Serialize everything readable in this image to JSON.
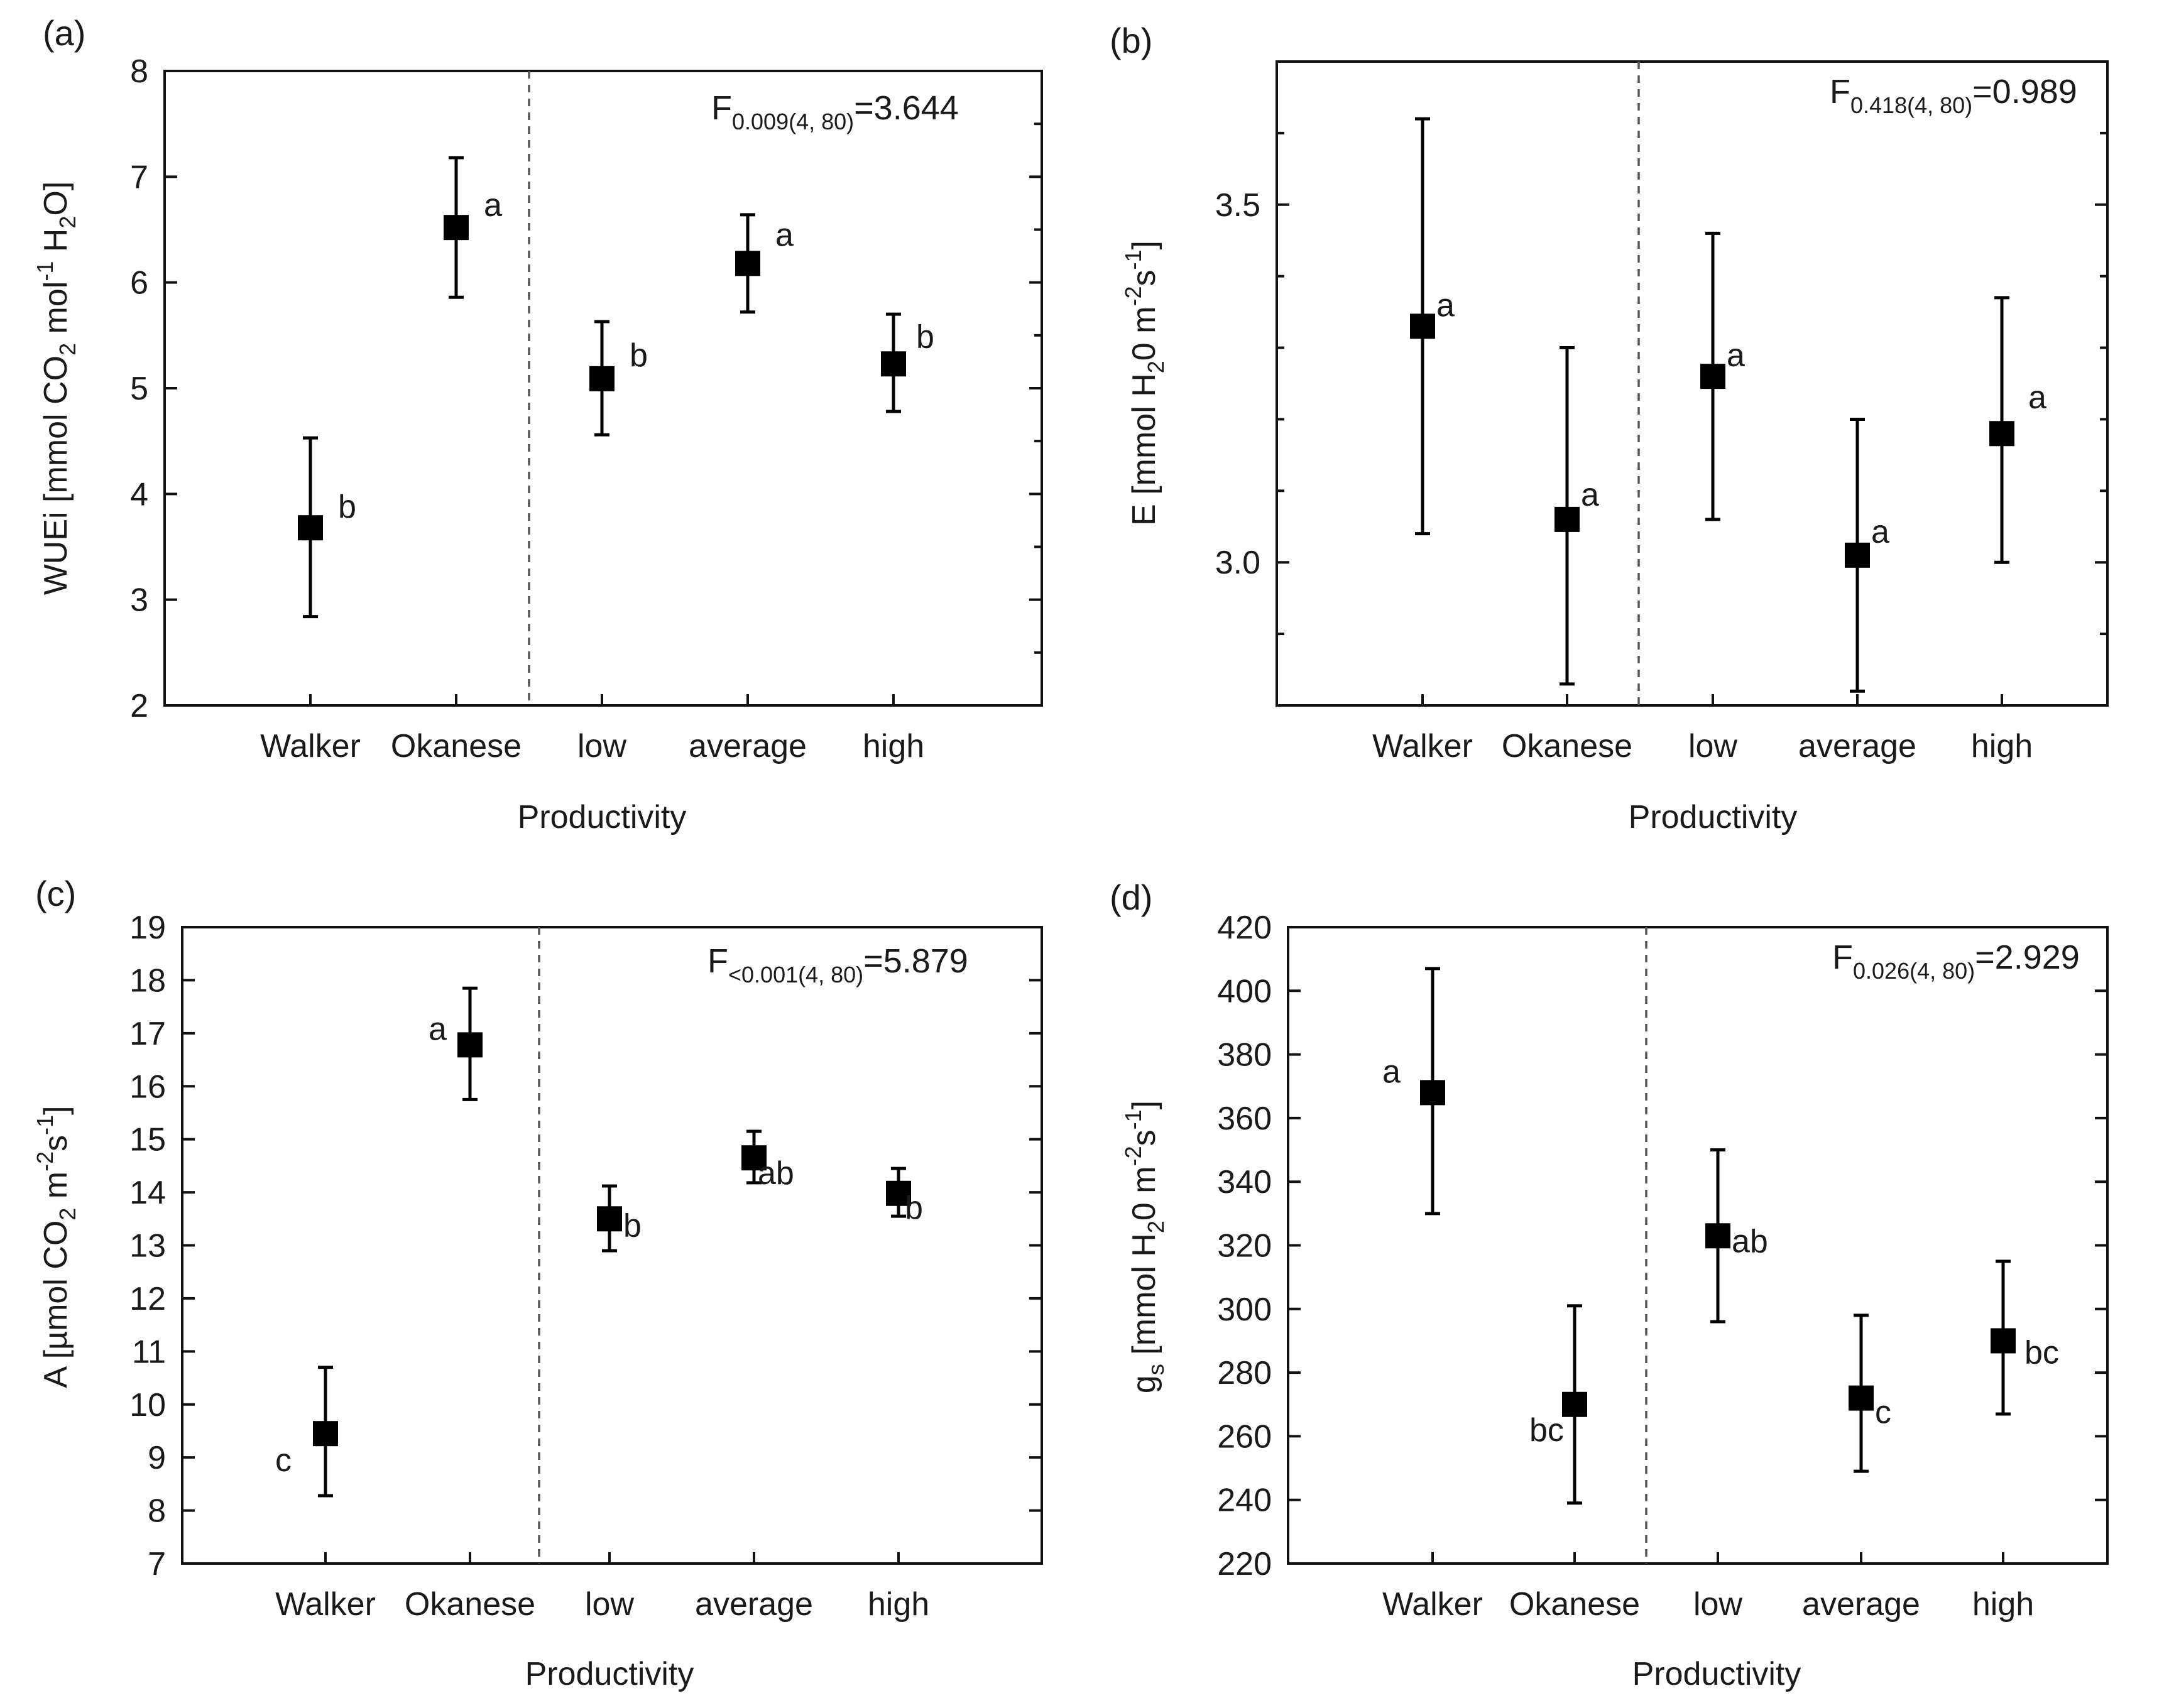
{
  "figure": "four-panel mean ± error plot",
  "chart_data": [
    {
      "type": "scatter",
      "panel": "(a)",
      "ylabel_main": "WUEi [mmol CO",
      "ylabel_sub2": "2",
      "ylabel_mid": " mol",
      "ylabel_sup": "-1",
      "ylabel_mid2": " H",
      "ylabel_sub2b": "2",
      "ylabel_end": "O]",
      "xlabel": "Productivity",
      "categories": [
        "Walker",
        "Okanese",
        "low",
        "average",
        "high"
      ],
      "values": [
        3.68,
        6.52,
        5.09,
        6.18,
        5.23
      ],
      "upper": [
        4.53,
        7.18,
        5.63,
        6.64,
        5.7
      ],
      "lower": [
        2.84,
        5.86,
        4.56,
        5.72,
        4.78
      ],
      "letters": [
        "b",
        "a",
        "b",
        "a",
        "b"
      ],
      "ylim": [
        2,
        8
      ],
      "yticks": [
        "2",
        "3",
        "4",
        "5",
        "6",
        "7",
        "8"
      ],
      "ytick_values": [
        2,
        3,
        4,
        5,
        6,
        7,
        8
      ],
      "stat_base": "F",
      "stat_sub": "0.009(4, 80)",
      "stat_value": "=3.644",
      "divider_after": "Okanese"
    },
    {
      "type": "scatter",
      "panel": "(b)",
      "ylabel_text": "E [mmol H",
      "ylabel_sub": "2",
      "ylabel_mid": "0 m",
      "ylabel_sup": "-2",
      "ylabel_mid2": "s",
      "ylabel_sup2": "-1",
      "ylabel_end": "]",
      "xlabel": "Productivity",
      "categories": [
        "Walker",
        "Okanese",
        "low",
        "average",
        "high"
      ],
      "values": [
        3.33,
        3.06,
        3.26,
        3.01,
        3.18
      ],
      "upper": [
        3.62,
        3.3,
        3.46,
        3.2,
        3.37
      ],
      "lower": [
        3.04,
        2.83,
        3.06,
        2.82,
        3.0
      ],
      "letters": [
        "a",
        "a",
        "a",
        "a",
        "a"
      ],
      "ylim": [
        2.8,
        3.7
      ],
      "yticks": [
        "3.0",
        "3.5"
      ],
      "ytick_values": [
        3.0,
        3.5
      ],
      "stat_base": "F",
      "stat_sub": "0.418(4, 80)",
      "stat_value": "=0.989",
      "divider_after": "Okanese"
    },
    {
      "type": "scatter",
      "panel": "(c)",
      "ylabel_text": "A [µmol CO",
      "ylabel_sub": "2",
      "ylabel_mid": " m",
      "ylabel_sup": "-2",
      "ylabel_mid2": "s",
      "ylabel_sup2": "-1",
      "ylabel_end": "]",
      "xlabel": "Productivity",
      "categories": [
        "Walker",
        "Okanese",
        "low",
        "average",
        "high"
      ],
      "values": [
        9.45,
        16.78,
        13.5,
        14.65,
        13.98
      ],
      "upper": [
        10.7,
        17.85,
        14.12,
        15.15,
        14.45
      ],
      "lower": [
        8.28,
        15.75,
        12.9,
        14.18,
        13.55
      ],
      "letters": [
        "c",
        "a",
        "b",
        "ab",
        "b"
      ],
      "ylim": [
        7,
        19
      ],
      "yticks": [
        "7",
        "8",
        "9",
        "10",
        "11",
        "12",
        "13",
        "14",
        "15",
        "16",
        "17",
        "18",
        "19"
      ],
      "ytick_values": [
        7,
        8,
        9,
        10,
        11,
        12,
        13,
        14,
        15,
        16,
        17,
        18,
        19
      ],
      "stat_base": "F",
      "stat_sub": "<0.001(4, 80)",
      "stat_value": "=5.879",
      "divider_after": "Okanese"
    },
    {
      "type": "scatter",
      "panel": "(d)",
      "ylabel_text": "g",
      "ylabel_sub": "s",
      "ylabel_mid": " [mmol H",
      "ylabel_sub_b": "2",
      "ylabel_mid2": "0 m",
      "ylabel_sup": "-2",
      "ylabel_mid3": "s",
      "ylabel_sup2": "-1",
      "ylabel_end": "]",
      "xlabel": "Productivity",
      "categories": [
        "Walker",
        "Okanese",
        "low",
        "average",
        "high"
      ],
      "values": [
        368,
        270,
        323,
        272,
        290
      ],
      "upper": [
        407,
        301,
        350,
        298,
        315
      ],
      "lower": [
        330,
        239,
        296,
        249,
        267
      ],
      "letters": [
        "a",
        "bc",
        "ab",
        "c",
        "bc"
      ],
      "ylim": [
        220,
        420
      ],
      "yticks": [
        "220",
        "240",
        "260",
        "280",
        "300",
        "320",
        "340",
        "360",
        "380",
        "400",
        "420"
      ],
      "ytick_values": [
        220,
        240,
        260,
        280,
        300,
        320,
        340,
        360,
        380,
        400,
        420
      ],
      "stat_base": "F",
      "stat_sub": "0.026(4, 80)",
      "stat_value": "=2.929",
      "divider_after": "Okanese"
    }
  ]
}
